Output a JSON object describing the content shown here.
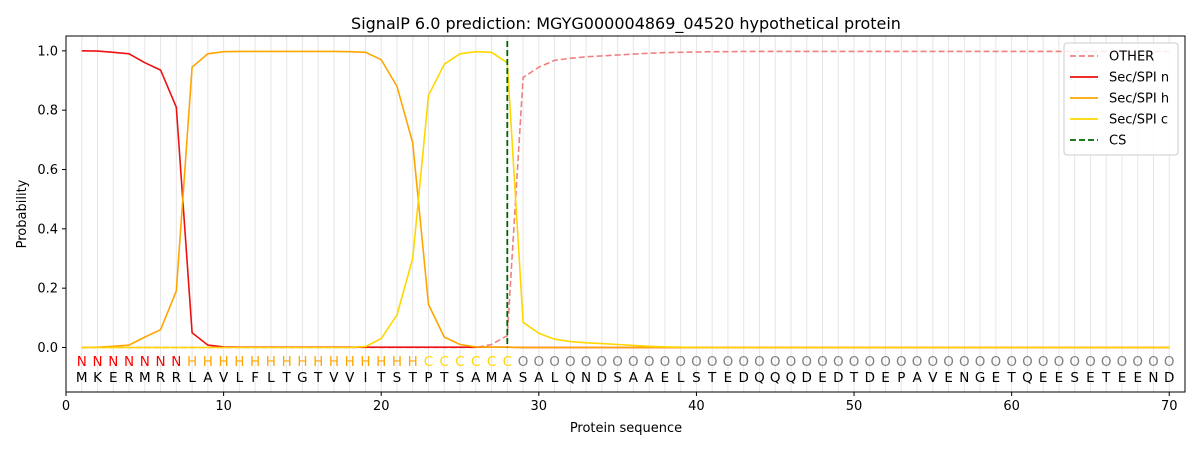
{
  "chart_data": {
    "type": "line",
    "title": "SignalP 6.0 prediction: MGYG000004869_04520 hypothetical protein",
    "xlabel": "Protein sequence",
    "ylabel": "Probability",
    "xlim": [
      0,
      71
    ],
    "ylim": [
      -0.15,
      1.05
    ],
    "xticks": [
      0,
      10,
      20,
      30,
      40,
      50,
      60,
      70
    ],
    "yticks": [
      "0.0",
      "0.2",
      "0.4",
      "0.6",
      "0.8",
      "1.0"
    ],
    "grid": "vertical lines at each residue",
    "legend_position": "top-right",
    "sequence": [
      "M",
      "K",
      "E",
      "R",
      "M",
      "R",
      "R",
      "L",
      "A",
      "V",
      "L",
      "F",
      "L",
      "T",
      "G",
      "T",
      "V",
      "V",
      "I",
      "T",
      "S",
      "T",
      "P",
      "T",
      "S",
      "A",
      "M",
      "A",
      "S",
      "A",
      "L",
      "Q",
      "N",
      "D",
      "S",
      "A",
      "A",
      "E",
      "L",
      "S",
      "T",
      "E",
      "D",
      "Q",
      "Q",
      "Q",
      "D",
      "E",
      "D",
      "T",
      "D",
      "E",
      "P",
      "A",
      "V",
      "E",
      "N",
      "G",
      "E",
      "T",
      "Q",
      "E",
      "E",
      "S",
      "E",
      "T",
      "E",
      "E",
      "N",
      "D"
    ],
    "labels": [
      "N",
      "N",
      "N",
      "N",
      "N",
      "N",
      "N",
      "H",
      "H",
      "H",
      "H",
      "H",
      "H",
      "H",
      "H",
      "H",
      "H",
      "H",
      "H",
      "H",
      "H",
      "H",
      "C",
      "C",
      "C",
      "C",
      "C",
      "C",
      "O",
      "O",
      "O",
      "O",
      "O",
      "O",
      "O",
      "O",
      "O",
      "O",
      "O",
      "O",
      "O",
      "O",
      "O",
      "O",
      "O",
      "O",
      "O",
      "O",
      "O",
      "O",
      "O",
      "O",
      "O",
      "O",
      "O",
      "O",
      "O",
      "O",
      "O",
      "O",
      "O",
      "O",
      "O",
      "O",
      "O",
      "O",
      "O",
      "O",
      "O",
      "O"
    ],
    "label_colors": {
      "N": "#ff0000",
      "H": "#ffa500",
      "C": "#ffd700",
      "O": "#808080"
    },
    "cleavage_site": 28,
    "series": [
      {
        "name": "OTHER",
        "color": "#f08080",
        "dash": "dashed",
        "values": [
          0,
          0,
          0,
          0,
          0,
          0,
          0,
          0,
          0,
          0,
          0,
          0,
          0,
          0,
          0,
          0,
          0,
          0,
          0,
          0,
          0,
          0,
          0,
          0,
          0,
          0,
          0.01,
          0.04,
          0.91,
          0.945,
          0.968,
          0.975,
          0.98,
          0.983,
          0.986,
          0.989,
          0.992,
          0.994,
          0.995,
          0.996,
          0.997,
          0.997,
          0.998,
          0.998,
          0.998,
          0.998,
          0.998,
          0.998,
          0.998,
          0.998,
          0.998,
          0.998,
          0.998,
          0.998,
          0.998,
          0.998,
          0.998,
          0.998,
          0.998,
          0.998,
          0.998,
          0.998,
          0.998,
          0.998,
          0.998,
          0.998,
          0.998,
          0.998,
          0.998,
          0.998
        ]
      },
      {
        "name": "Sec/SPI n",
        "color": "#ee1111",
        "dash": "solid",
        "values": [
          1.0,
          0.999,
          0.995,
          0.99,
          0.96,
          0.935,
          0.81,
          0.05,
          0.008,
          0.002,
          0.001,
          0.001,
          0.001,
          0.001,
          0.001,
          0.001,
          0.001,
          0.001,
          0.001,
          0.001,
          0.001,
          0.001,
          0.001,
          0.001,
          0.001,
          0.001,
          0.001,
          0.001,
          0,
          0,
          0,
          0,
          0,
          0,
          0,
          0,
          0,
          0,
          0,
          0,
          0,
          0,
          0,
          0,
          0,
          0,
          0,
          0,
          0,
          0,
          0,
          0,
          0,
          0,
          0,
          0,
          0,
          0,
          0,
          0,
          0,
          0,
          0,
          0,
          0,
          0,
          0,
          0,
          0,
          0
        ]
      },
      {
        "name": "Sec/SPI h",
        "color": "#ffa500",
        "dash": "solid",
        "values": [
          0,
          0.001,
          0.004,
          0.008,
          0.035,
          0.06,
          0.19,
          0.945,
          0.99,
          0.997,
          0.998,
          0.998,
          0.998,
          0.998,
          0.998,
          0.998,
          0.998,
          0.997,
          0.995,
          0.97,
          0.88,
          0.69,
          0.145,
          0.035,
          0.01,
          0.002,
          0.001,
          0.001,
          0,
          0,
          0,
          0,
          0,
          0,
          0,
          0,
          0,
          0,
          0,
          0,
          0,
          0,
          0,
          0,
          0,
          0,
          0,
          0,
          0,
          0,
          0,
          0,
          0,
          0,
          0,
          0,
          0,
          0,
          0,
          0,
          0,
          0,
          0,
          0,
          0,
          0,
          0,
          0,
          0,
          0
        ]
      },
      {
        "name": "Sec/SPI c",
        "color": "#ffd700",
        "dash": "solid",
        "values": [
          0,
          0,
          0,
          0,
          0,
          0,
          0,
          0,
          0,
          0,
          0,
          0,
          0,
          0,
          0,
          0,
          0,
          0,
          0.003,
          0.03,
          0.11,
          0.3,
          0.85,
          0.955,
          0.99,
          0.997,
          0.995,
          0.96,
          0.085,
          0.048,
          0.028,
          0.02,
          0.016,
          0.013,
          0.01,
          0.007,
          0.004,
          0.002,
          0.001,
          0,
          0,
          0,
          0,
          0,
          0,
          0,
          0,
          0,
          0,
          0,
          0,
          0,
          0,
          0,
          0,
          0,
          0,
          0,
          0,
          0,
          0,
          0,
          0,
          0,
          0,
          0,
          0,
          0,
          0,
          0
        ]
      }
    ],
    "cs_series": {
      "name": "CS",
      "color": "#006400",
      "dash": "dashed"
    }
  }
}
